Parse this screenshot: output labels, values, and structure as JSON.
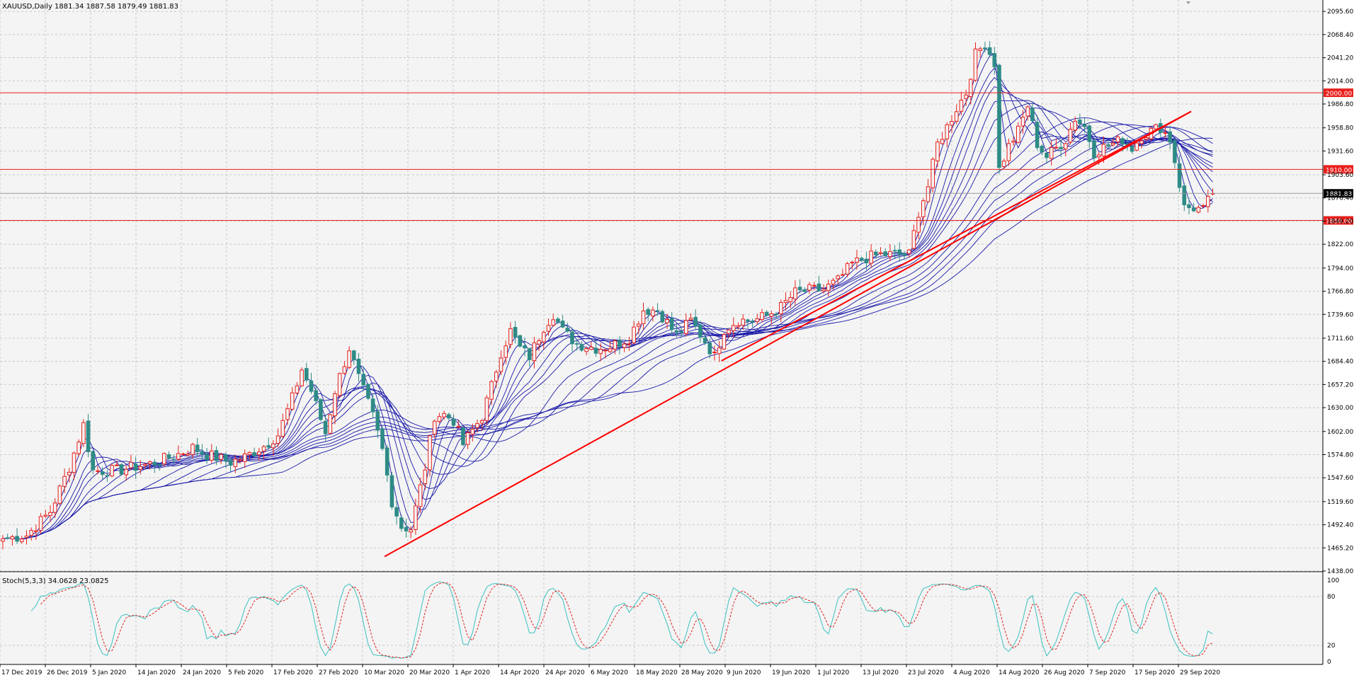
{
  "window": {
    "symbol_header": "XAUUSD,Daily  1881.34 1887.58 1879.49 1881.83",
    "stoch_header": "Stoch(5,3,3) 34.0628 23.0825"
  },
  "colors": {
    "background": "#f4f4f4",
    "grid": "#c8c8c8",
    "bull": "#e8201c",
    "bear": "#2e8b86",
    "ma": "#1a1aa8",
    "level": "#e8201c",
    "trendline": "#ff0000",
    "stoch_main": "#3cc0c0",
    "stoch_signal": "#e02020"
  },
  "chart_data": [
    {
      "type": "candlestick",
      "title": "XAUUSD,Daily",
      "ohlc_last": {
        "open": 1881.34,
        "high": 1887.58,
        "low": 1879.49,
        "close": 1881.83
      },
      "ylim": [
        1438.0,
        2109.0
      ],
      "y_ticks": [
        "2095.60",
        "2068.40",
        "2041.20",
        "2014.00",
        "1986.80",
        "1958.80",
        "1931.60",
        "1903.60",
        "1876.40",
        "1849.20",
        "1822.00",
        "1794.00",
        "1766.80",
        "1739.60",
        "1711.60",
        "1684.40",
        "1657.20",
        "1630.00",
        "1602.00",
        "1574.80",
        "1547.60",
        "1519.60",
        "1492.40",
        "1465.20",
        "1438.00"
      ],
      "x_ticks": [
        "17 Dec 2019",
        "26 Dec 2019",
        "5 Jan 2020",
        "14 Jan 2020",
        "24 Jan 2020",
        "5 Feb 2020",
        "17 Feb 2020",
        "27 Feb 2020",
        "10 Mar 2020",
        "20 Mar 2020",
        "1 Apr 2020",
        "14 Apr 2020",
        "24 Apr 2020",
        "6 May 2020",
        "18 May 2020",
        "28 May 2020",
        "9 Jun 2020",
        "19 Jun 2020",
        "1 Jul 2020",
        "13 Jul 2020",
        "23 Jul 2020",
        "4 Aug 2020",
        "14 Aug 2020",
        "26 Aug 2020",
        "7 Sep 2020",
        "17 Sep 2020",
        "29 Sep 2020"
      ],
      "close_anchors": [
        [
          0,
          1476
        ],
        [
          5,
          1480
        ],
        [
          10,
          1508
        ],
        [
          14,
          1560
        ],
        [
          17,
          1610
        ],
        [
          19,
          1556
        ],
        [
          24,
          1556
        ],
        [
          31,
          1564
        ],
        [
          36,
          1573
        ],
        [
          40,
          1583
        ],
        [
          43,
          1575
        ],
        [
          48,
          1566
        ],
        [
          51,
          1572
        ],
        [
          55,
          1585
        ],
        [
          58,
          1598
        ],
        [
          61,
          1641
        ],
        [
          63,
          1675
        ],
        [
          65,
          1650
        ],
        [
          68,
          1600
        ],
        [
          70,
          1650
        ],
        [
          73,
          1700
        ],
        [
          75,
          1665
        ],
        [
          78,
          1620
        ],
        [
          80,
          1580
        ],
        [
          82,
          1520
        ],
        [
          84,
          1490
        ],
        [
          86,
          1488
        ],
        [
          89,
          1560
        ],
        [
          91,
          1621
        ],
        [
          93,
          1622
        ],
        [
          95,
          1615
        ],
        [
          97,
          1587
        ],
        [
          101,
          1620
        ],
        [
          103,
          1655
        ],
        [
          105,
          1695
        ],
        [
          107,
          1720
        ],
        [
          109,
          1700
        ],
        [
          111,
          1690
        ],
        [
          114,
          1725
        ],
        [
          116,
          1740
        ],
        [
          118,
          1720
        ],
        [
          121,
          1705
        ],
        [
          125,
          1700
        ],
        [
          128,
          1702
        ],
        [
          132,
          1712
        ],
        [
          135,
          1745
        ],
        [
          138,
          1745
        ],
        [
          140,
          1730
        ],
        [
          142,
          1715
        ],
        [
          145,
          1732
        ],
        [
          148,
          1708
        ],
        [
          150,
          1690
        ],
        [
          152,
          1722
        ],
        [
          155,
          1733
        ],
        [
          158,
          1732
        ],
        [
          161,
          1738
        ],
        [
          164,
          1748
        ],
        [
          167,
          1765
        ],
        [
          170,
          1768
        ],
        [
          173,
          1769
        ],
        [
          176,
          1779
        ],
        [
          179,
          1799
        ],
        [
          182,
          1806
        ],
        [
          185,
          1810
        ],
        [
          188,
          1810
        ],
        [
          191,
          1810
        ],
        [
          193,
          1860
        ],
        [
          195,
          1890
        ],
        [
          197,
          1940
        ],
        [
          199,
          1960
        ],
        [
          201,
          1982
        ],
        [
          203,
          2000
        ],
        [
          205,
          2045
        ],
        [
          207,
          2058
        ],
        [
          209,
          2035
        ],
        [
          210,
          1910
        ],
        [
          212,
          1937
        ],
        [
          214,
          1955
        ],
        [
          216,
          1985
        ],
        [
          218,
          1940
        ],
        [
          220,
          1925
        ],
        [
          222,
          1935
        ],
        [
          224,
          1945
        ],
        [
          226,
          1970
        ],
        [
          228,
          1960
        ],
        [
          230,
          1930
        ],
        [
          232,
          1936
        ],
        [
          234,
          1940
        ],
        [
          236,
          1945
        ],
        [
          238,
          1935
        ],
        [
          240,
          1950
        ],
        [
          242,
          1955
        ],
        [
          244,
          1960
        ],
        [
          246,
          1945
        ],
        [
          247,
          1920
        ],
        [
          249,
          1865
        ],
        [
          251,
          1865
        ],
        [
          253,
          1862
        ],
        [
          255,
          1881.83
        ]
      ],
      "ma_periods": [
        3,
        5,
        8,
        10,
        12,
        15,
        18,
        21,
        30,
        35,
        40,
        45,
        50,
        60
      ],
      "horizontal_levels": [
        {
          "value": 2000.0,
          "label": "2000.00"
        },
        {
          "value": 1910.0,
          "label": "1910.00"
        },
        {
          "value": 1850.0,
          "label": "1850.00"
        }
      ],
      "current_price_label": "1881.83",
      "trendlines": [
        {
          "from_date": "11 Mar 2020",
          "from_value": 1455,
          "to_date": "21 Sep 2020",
          "to_value": 1978
        },
        {
          "from_date": "2 Jun 2020",
          "from_value": 1685,
          "to_date": "21 Sep 2020",
          "to_value": 1978
        }
      ]
    },
    {
      "type": "line",
      "title": "Stoch(5,3,3) 34.0628 23.0825",
      "ylim": [
        0,
        100
      ],
      "y_ticks": [
        "100",
        "80",
        "20",
        "0"
      ],
      "levels": [
        20,
        80
      ],
      "last": {
        "main": 34.0628,
        "signal": 23.0825
      }
    }
  ]
}
